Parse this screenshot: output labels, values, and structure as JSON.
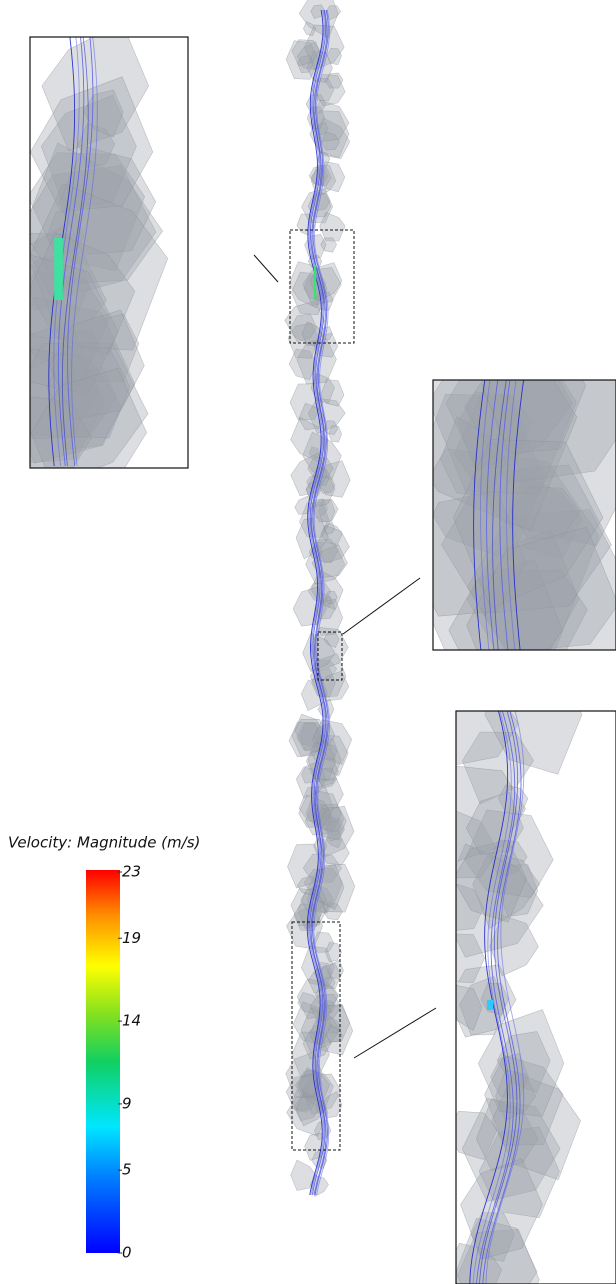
{
  "legend": {
    "title": "Velocity: Magnitude (m/s)",
    "range": [
      0,
      23
    ],
    "ticks": [
      23,
      19,
      14,
      9,
      5,
      0
    ]
  }
}
